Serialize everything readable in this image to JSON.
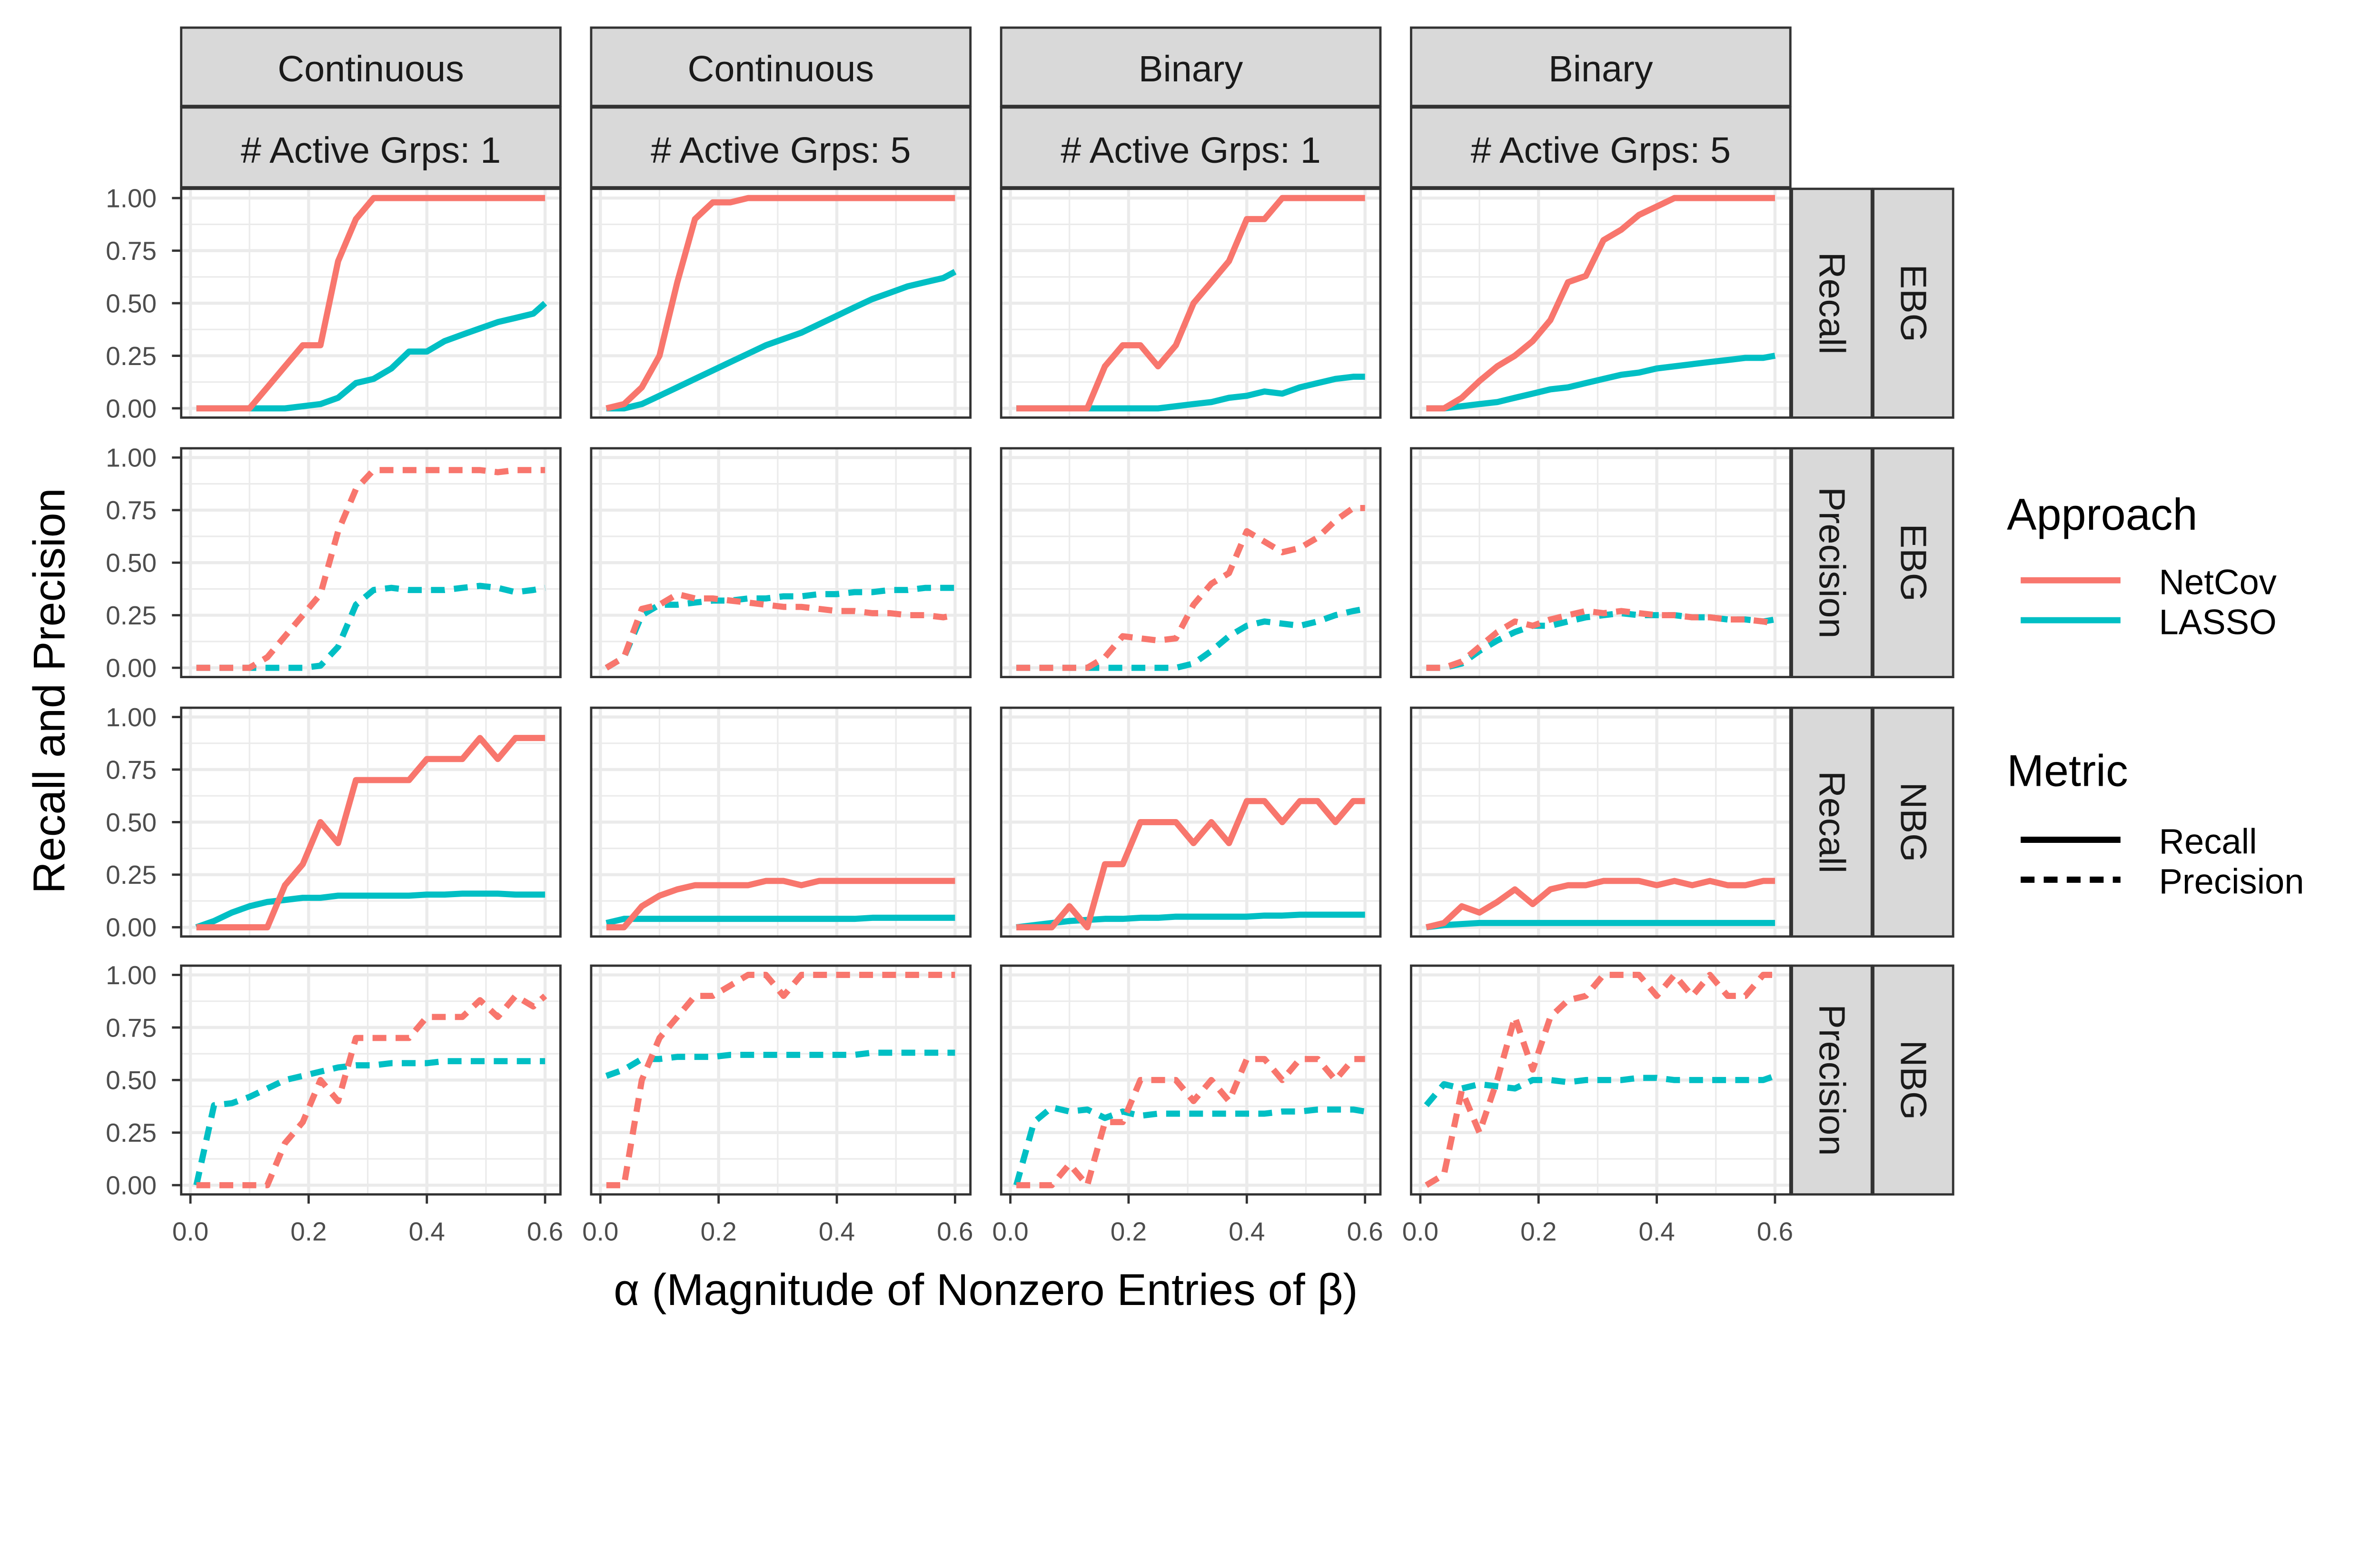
{
  "chart_data": {
    "type": "line",
    "xlabel": "α (Magnitude of Nonzero Entries of β)",
    "ylabel": "Recall and Precision",
    "xlim": [
      0,
      0.6
    ],
    "ylim": [
      0,
      1
    ],
    "x_ticks": [
      "0.0",
      "0.2",
      "0.4",
      "0.6"
    ],
    "y_ticks": [
      "0.00",
      "0.25",
      "0.50",
      "0.75",
      "1.00"
    ],
    "grid": true,
    "columns": [
      {
        "type": "Continuous",
        "groups": "# Active Grps: 1"
      },
      {
        "type": "Continuous",
        "groups": "# Active Grps: 5"
      },
      {
        "type": "Binary",
        "groups": "# Active Grps: 1"
      },
      {
        "type": "Binary",
        "groups": "# Active Grps: 5"
      }
    ],
    "rows": [
      {
        "metric": "Recall",
        "graph": "EBG"
      },
      {
        "metric": "Precision",
        "graph": "EBG"
      },
      {
        "metric": "Recall",
        "graph": "NBG"
      },
      {
        "metric": "Precision",
        "graph": "NBG"
      }
    ],
    "legend": {
      "placement": "right",
      "approach_title": "Approach",
      "approach": [
        {
          "name": "NetCov",
          "color": "#F8766D"
        },
        {
          "name": "LASSO",
          "color": "#00BFC4"
        }
      ],
      "metric_title": "Metric",
      "metric": [
        {
          "name": "Recall",
          "dash": "solid"
        },
        {
          "name": "Precision",
          "dash": "dashed"
        }
      ]
    },
    "x": [
      0.01,
      0.04,
      0.07,
      0.1,
      0.13,
      0.16,
      0.19,
      0.22,
      0.25,
      0.28,
      0.31,
      0.34,
      0.37,
      0.4,
      0.43,
      0.46,
      0.49,
      0.52,
      0.55,
      0.58,
      0.6
    ],
    "panels": [
      [
        {
          "NetCov": [
            0,
            0,
            0,
            0,
            0.1,
            0.2,
            0.3,
            0.3,
            0.7,
            0.9,
            1,
            1,
            1,
            1,
            1,
            1,
            1,
            1,
            1,
            1,
            1
          ],
          "LASSO": [
            0,
            0,
            0,
            0,
            0,
            0,
            0.01,
            0.02,
            0.05,
            0.12,
            0.14,
            0.19,
            0.27,
            0.27,
            0.32,
            0.35,
            0.38,
            0.41,
            0.43,
            0.45,
            0.5
          ]
        },
        {
          "NetCov": [
            0,
            0.02,
            0.1,
            0.25,
            0.6,
            0.9,
            0.98,
            0.98,
            1,
            1,
            1,
            1,
            1,
            1,
            1,
            1,
            1,
            1,
            1,
            1,
            1
          ],
          "LASSO": [
            0,
            0,
            0.02,
            0.06,
            0.1,
            0.14,
            0.18,
            0.22,
            0.26,
            0.3,
            0.33,
            0.36,
            0.4,
            0.44,
            0.48,
            0.52,
            0.55,
            0.58,
            0.6,
            0.62,
            0.65
          ]
        },
        {
          "NetCov": [
            0,
            0,
            0,
            0,
            0,
            0.2,
            0.3,
            0.3,
            0.2,
            0.3,
            0.5,
            0.6,
            0.7,
            0.9,
            0.9,
            1,
            1,
            1,
            1,
            1,
            1
          ],
          "LASSO": [
            0,
            0,
            0,
            0,
            0,
            0,
            0,
            0,
            0,
            0.01,
            0.02,
            0.03,
            0.05,
            0.06,
            0.08,
            0.07,
            0.1,
            0.12,
            0.14,
            0.15,
            0.15
          ]
        },
        {
          "NetCov": [
            0,
            0,
            0.05,
            0.13,
            0.2,
            0.25,
            0.32,
            0.42,
            0.6,
            0.63,
            0.8,
            0.85,
            0.92,
            0.96,
            1,
            1,
            1,
            1,
            1,
            1,
            1
          ],
          "LASSO": [
            0,
            0,
            0.01,
            0.02,
            0.03,
            0.05,
            0.07,
            0.09,
            0.1,
            0.12,
            0.14,
            0.16,
            0.17,
            0.19,
            0.2,
            0.21,
            0.22,
            0.23,
            0.24,
            0.24,
            0.25
          ]
        }
      ],
      [
        {
          "NetCov": [
            0,
            0,
            0,
            0,
            0.05,
            0.15,
            0.25,
            0.35,
            0.65,
            0.85,
            0.94,
            0.94,
            0.94,
            0.94,
            0.94,
            0.94,
            0.94,
            0.93,
            0.94,
            0.94,
            0.94
          ],
          "LASSO": [
            0,
            0,
            0,
            0,
            0,
            0,
            0,
            0.01,
            0.1,
            0.3,
            0.37,
            0.38,
            0.37,
            0.37,
            0.37,
            0.38,
            0.39,
            0.38,
            0.36,
            0.37,
            0.38
          ]
        },
        {
          "NetCov": [
            0,
            0.05,
            0.28,
            0.3,
            0.35,
            0.33,
            0.33,
            0.32,
            0.31,
            0.3,
            0.29,
            0.29,
            0.28,
            0.27,
            0.27,
            0.26,
            0.26,
            0.25,
            0.25,
            0.24,
            0.25
          ],
          "LASSO": [
            0,
            0.05,
            0.25,
            0.3,
            0.3,
            0.31,
            0.32,
            0.32,
            0.33,
            0.33,
            0.34,
            0.34,
            0.35,
            0.35,
            0.36,
            0.36,
            0.37,
            0.37,
            0.38,
            0.38,
            0.38
          ]
        },
        {
          "NetCov": [
            0,
            0,
            0,
            0,
            0,
            0.05,
            0.15,
            0.14,
            0.13,
            0.14,
            0.3,
            0.4,
            0.45,
            0.65,
            0.6,
            0.55,
            0.57,
            0.62,
            0.7,
            0.76,
            0.76
          ],
          "LASSO": [
            0,
            0,
            0,
            0,
            0,
            0,
            0,
            0,
            0,
            0,
            0.02,
            0.08,
            0.15,
            0.2,
            0.22,
            0.21,
            0.2,
            0.22,
            0.25,
            0.27,
            0.28
          ]
        },
        {
          "NetCov": [
            0,
            0,
            0.03,
            0.1,
            0.17,
            0.22,
            0.2,
            0.23,
            0.25,
            0.27,
            0.26,
            0.27,
            0.26,
            0.25,
            0.25,
            0.24,
            0.24,
            0.23,
            0.23,
            0.22,
            0.21
          ],
          "LASSO": [
            0,
            0,
            0.02,
            0.08,
            0.13,
            0.17,
            0.2,
            0.2,
            0.22,
            0.24,
            0.25,
            0.26,
            0.25,
            0.25,
            0.25,
            0.24,
            0.24,
            0.23,
            0.23,
            0.22,
            0.23
          ]
        }
      ],
      [
        {
          "NetCov": [
            0,
            0,
            0,
            0,
            0,
            0.2,
            0.3,
            0.5,
            0.4,
            0.7,
            0.7,
            0.7,
            0.7,
            0.8,
            0.8,
            0.8,
            0.9,
            0.8,
            0.9,
            0.9,
            0.9
          ],
          "LASSO": [
            0,
            0.03,
            0.07,
            0.1,
            0.12,
            0.13,
            0.14,
            0.14,
            0.15,
            0.15,
            0.15,
            0.15,
            0.15,
            0.155,
            0.155,
            0.16,
            0.16,
            0.16,
            0.155,
            0.155,
            0.155
          ]
        },
        {
          "NetCov": [
            0,
            0,
            0.1,
            0.15,
            0.18,
            0.2,
            0.2,
            0.2,
            0.2,
            0.22,
            0.22,
            0.2,
            0.22,
            0.22,
            0.22,
            0.22,
            0.22,
            0.22,
            0.22,
            0.22,
            0.22
          ],
          "LASSO": [
            0.02,
            0.04,
            0.04,
            0.04,
            0.04,
            0.04,
            0.04,
            0.04,
            0.04,
            0.04,
            0.04,
            0.04,
            0.04,
            0.04,
            0.04,
            0.045,
            0.045,
            0.045,
            0.045,
            0.045,
            0.045
          ]
        },
        {
          "NetCov": [
            0,
            0,
            0,
            0.1,
            0,
            0.3,
            0.3,
            0.5,
            0.5,
            0.5,
            0.4,
            0.5,
            0.4,
            0.6,
            0.6,
            0.5,
            0.6,
            0.6,
            0.5,
            0.6,
            0.6
          ],
          "LASSO": [
            0,
            0.01,
            0.02,
            0.03,
            0.035,
            0.04,
            0.04,
            0.045,
            0.045,
            0.05,
            0.05,
            0.05,
            0.05,
            0.05,
            0.055,
            0.055,
            0.06,
            0.06,
            0.06,
            0.06,
            0.06
          ]
        },
        {
          "NetCov": [
            0,
            0.02,
            0.1,
            0.07,
            0.12,
            0.18,
            0.11,
            0.18,
            0.2,
            0.2,
            0.22,
            0.22,
            0.22,
            0.2,
            0.22,
            0.2,
            0.22,
            0.2,
            0.2,
            0.22,
            0.22
          ],
          "LASSO": [
            0,
            0.01,
            0.015,
            0.02,
            0.02,
            0.02,
            0.02,
            0.02,
            0.02,
            0.02,
            0.02,
            0.02,
            0.02,
            0.02,
            0.02,
            0.02,
            0.02,
            0.02,
            0.02,
            0.02,
            0.02
          ]
        }
      ],
      [
        {
          "NetCov": [
            0,
            0,
            0,
            0,
            0,
            0.2,
            0.3,
            0.5,
            0.4,
            0.7,
            0.7,
            0.7,
            0.7,
            0.8,
            0.8,
            0.8,
            0.88,
            0.8,
            0.9,
            0.85,
            0.9
          ],
          "LASSO": [
            0,
            0.38,
            0.39,
            0.42,
            0.46,
            0.5,
            0.52,
            0.54,
            0.56,
            0.57,
            0.57,
            0.58,
            0.58,
            0.58,
            0.59,
            0.59,
            0.59,
            0.59,
            0.59,
            0.59,
            0.59
          ]
        },
        {
          "NetCov": [
            0,
            0,
            0.5,
            0.7,
            0.8,
            0.9,
            0.9,
            0.95,
            1,
            1,
            0.9,
            1,
            1,
            1,
            1,
            1,
            1,
            1,
            1,
            1,
            1
          ],
          "LASSO": [
            0.52,
            0.55,
            0.6,
            0.6,
            0.61,
            0.61,
            0.61,
            0.62,
            0.62,
            0.62,
            0.62,
            0.62,
            0.62,
            0.62,
            0.62,
            0.63,
            0.63,
            0.63,
            0.63,
            0.63,
            0.63
          ]
        },
        {
          "NetCov": [
            0,
            0,
            0,
            0.1,
            0,
            0.3,
            0.3,
            0.5,
            0.5,
            0.5,
            0.4,
            0.5,
            0.4,
            0.6,
            0.6,
            0.5,
            0.6,
            0.6,
            0.5,
            0.6,
            0.6
          ],
          "LASSO": [
            0,
            0.3,
            0.37,
            0.35,
            0.36,
            0.32,
            0.35,
            0.33,
            0.34,
            0.34,
            0.34,
            0.34,
            0.34,
            0.34,
            0.34,
            0.35,
            0.35,
            0.36,
            0.36,
            0.36,
            0.35
          ]
        },
        {
          "NetCov": [
            0,
            0.05,
            0.45,
            0.25,
            0.5,
            0.8,
            0.55,
            0.8,
            0.88,
            0.9,
            1,
            1,
            1,
            0.9,
            1,
            0.9,
            1,
            0.9,
            0.9,
            1,
            1
          ],
          "LASSO": [
            0.38,
            0.48,
            0.46,
            0.48,
            0.47,
            0.46,
            0.5,
            0.5,
            0.49,
            0.5,
            0.5,
            0.5,
            0.51,
            0.51,
            0.5,
            0.5,
            0.5,
            0.5,
            0.5,
            0.5,
            0.52
          ]
        }
      ]
    ]
  }
}
